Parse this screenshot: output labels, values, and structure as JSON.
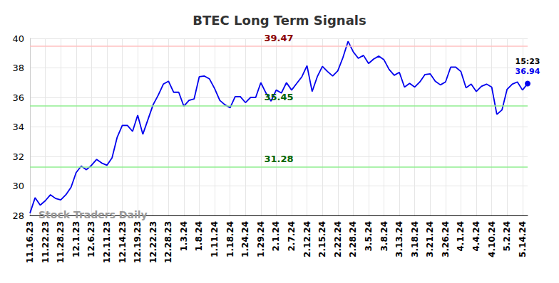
{
  "chart_data": {
    "type": "line",
    "title": "BTEC Long Term Signals",
    "categories": [
      "11.16.23",
      null,
      null,
      "11.22.23",
      null,
      null,
      "11.28.23",
      null,
      null,
      "12.1.23",
      null,
      null,
      "12.6.23",
      null,
      null,
      "12.11.23",
      null,
      null,
      "12.14.23",
      null,
      null,
      "12.19.23",
      null,
      null,
      "12.22.23",
      null,
      null,
      "12.28.23",
      null,
      null,
      "1.3.24",
      null,
      null,
      "1.8.24",
      null,
      null,
      "1.11.24",
      null,
      null,
      "1.18.24",
      null,
      null,
      "1.24.24",
      null,
      null,
      "1.29.24",
      null,
      null,
      "2.1.24",
      null,
      null,
      "2.7.24",
      null,
      null,
      "2.12.24",
      null,
      null,
      "2.15.24",
      null,
      null,
      "2.22.24",
      null,
      null,
      "2.28.24",
      null,
      null,
      "3.5.24",
      null,
      null,
      "3.8.24",
      null,
      null,
      "3.13.24",
      null,
      null,
      "3.18.24",
      null,
      null,
      "3.21.24",
      null,
      null,
      "3.26.24",
      null,
      null,
      "4.1.24",
      null,
      null,
      "4.4.24",
      null,
      null,
      "4.10.24",
      null,
      null,
      "5.2.24",
      null,
      null,
      "5.14.24",
      null
    ],
    "values": [
      28.15,
      29.2,
      28.7,
      29.0,
      29.4,
      29.15,
      29.05,
      29.4,
      29.9,
      30.9,
      31.35,
      31.1,
      31.4,
      31.8,
      31.55,
      31.4,
      31.9,
      33.3,
      34.1,
      34.1,
      33.7,
      34.8,
      33.5,
      34.5,
      35.5,
      36.15,
      36.9,
      37.1,
      36.35,
      36.35,
      35.4,
      35.8,
      35.9,
      37.4,
      37.45,
      37.25,
      36.6,
      35.8,
      35.5,
      35.3,
      36.05,
      36.05,
      35.65,
      36.0,
      36.0,
      37.0,
      36.3,
      35.75,
      36.5,
      36.3,
      37.0,
      36.5,
      36.95,
      37.4,
      38.15,
      36.4,
      37.4,
      38.1,
      37.75,
      37.45,
      37.8,
      38.7,
      39.8,
      39.1,
      38.65,
      38.85,
      38.3,
      38.6,
      38.8,
      38.55,
      37.9,
      37.5,
      37.7,
      36.7,
      36.95,
      36.7,
      37.05,
      37.55,
      37.6,
      37.1,
      36.85,
      37.05,
      38.05,
      38.05,
      37.75,
      36.65,
      36.9,
      36.4,
      36.75,
      36.9,
      36.7,
      34.85,
      35.15,
      36.55,
      36.9,
      37.05,
      36.5,
      36.94
    ],
    "color": "#0000ee",
    "ylim": [
      28,
      40
    ],
    "yticks": [
      28,
      30,
      32,
      34,
      36,
      38,
      40
    ],
    "grid": true,
    "reference_lines": [
      {
        "value": 39.47,
        "label": "39.47",
        "color": "#ffc0c0",
        "label_color": "#8b0000"
      },
      {
        "value": 35.45,
        "label": "35.45",
        "color": "#90ee90",
        "label_color": "#006400"
      },
      {
        "value": 31.28,
        "label": "31.28",
        "color": "#90ee90",
        "label_color": "#006400"
      }
    ],
    "last_point": {
      "time_label": "15:23",
      "value_label": "36.94",
      "color": "#0000ee"
    },
    "watermark": "Stock Traders Daily"
  }
}
